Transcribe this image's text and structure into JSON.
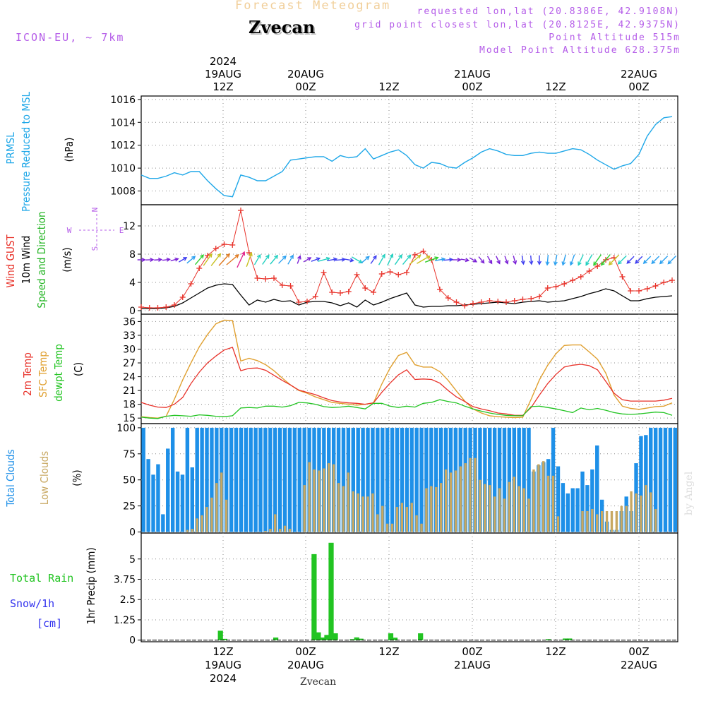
{
  "header": {
    "title": "Forecast Meteogram",
    "station": "Zvecan",
    "model": "ICON-EU, ~ 7km",
    "requested": "requested lon,lat (20.8386E, 42.9108N)",
    "grid_point": "grid point closest lon,lat (20.8125E, 42.9375N)",
    "point_altitude": "Point Altitude 515m",
    "model_altitude": "Model Point Altitude 628.375m"
  },
  "footer": {
    "station": "Zvecan",
    "credit": "by Angel"
  },
  "colors": {
    "pressure": "#1ea7e8",
    "wind": "#000000",
    "gust": "#e8322a",
    "temp": "#e8322a",
    "sfc_temp": "#e0a030",
    "dewpt": "#22c422",
    "total_clouds": "#1e90e8",
    "low_clouds": "#c8a862",
    "rain": "#22c422",
    "snow_label": "#3333ee",
    "compass": "#b45ce8"
  },
  "chart_data": [
    {
      "panel": "pressure",
      "type": "line",
      "ylabel_left": [
        "PRMSL",
        "Pressure Reduced to MSL"
      ],
      "ylabel_unit": "(hPa)",
      "ylim": [
        1006.8,
        1016.3
      ],
      "yticks": [
        1008,
        1010,
        1012,
        1014,
        1016
      ],
      "x": [
        0,
        1,
        2,
        3,
        4,
        5,
        6,
        7,
        8,
        9,
        10,
        11,
        12,
        13,
        14,
        15,
        16,
        17,
        18,
        19,
        20,
        21,
        22,
        23,
        24,
        25,
        26,
        27,
        28,
        29,
        30,
        31,
        32,
        33,
        34,
        35,
        36,
        37,
        38,
        39,
        40,
        41,
        42,
        43,
        44,
        45,
        46,
        47,
        48,
        49,
        50,
        51,
        52,
        53,
        54,
        55,
        56,
        57,
        58,
        59,
        60,
        61,
        62,
        63,
        64
      ],
      "values": [
        1009.4,
        1009.1,
        1009.1,
        1009.3,
        1009.6,
        1009.4,
        1009.7,
        1009.7,
        1008.9,
        1008.2,
        1007.6,
        1007.5,
        1009.4,
        1009.2,
        1008.9,
        1008.9,
        1009.3,
        1009.7,
        1010.7,
        1010.8,
        1010.9,
        1011.0,
        1011.0,
        1010.6,
        1011.1,
        1010.9,
        1011.0,
        1011.7,
        1010.8,
        1011.1,
        1011.4,
        1011.6,
        1011.1,
        1010.3,
        1010.0,
        1010.5,
        1010.4,
        1010.1,
        1010.0,
        1010.5,
        1010.9,
        1011.4,
        1011.7,
        1011.5,
        1011.2,
        1011.1,
        1011.1,
        1011.3,
        1011.4,
        1011.3,
        1011.3,
        1011.5,
        1011.7,
        1011.6,
        1011.2,
        1010.7,
        1010.3,
        1009.9,
        1010.2,
        1010.4,
        1011.2,
        1012.8,
        1013.8,
        1014.4,
        1014.5
      ]
    },
    {
      "panel": "wind",
      "type": "line",
      "ylabel_left": [
        "Wind GUST",
        "10m Wind",
        "Speed and Direction"
      ],
      "ylabel_unit": "(m/s)",
      "compass": {
        "n": "N",
        "s": "S",
        "e": "E",
        "w": "W"
      },
      "ylim": [
        -0.5,
        15
      ],
      "yticks": [
        0,
        4,
        8,
        12
      ],
      "wind_speed": [
        0.3,
        0.3,
        0.3,
        0.4,
        0.6,
        1.1,
        1.8,
        2.5,
        3.2,
        3.6,
        3.8,
        3.7,
        2.2,
        0.8,
        1.5,
        1.2,
        1.6,
        1.3,
        1.4,
        0.8,
        1.2,
        1.3,
        1.3,
        1.1,
        0.7,
        1.1,
        0.5,
        1.5,
        0.8,
        1.2,
        1.7,
        2.1,
        2.5,
        0.8,
        0.5,
        0.6,
        0.6,
        0.7,
        0.7,
        0.8,
        0.9,
        1.0,
        1.1,
        1.2,
        1.1,
        1.0,
        1.2,
        1.3,
        1.4,
        1.2,
        1.3,
        1.4,
        1.7,
        2.0,
        2.4,
        2.7,
        3.1,
        2.8,
        2.1,
        1.4,
        1.4,
        1.7,
        1.9,
        2.0,
        2.1
      ],
      "gust": [
        0.5,
        0.4,
        0.4,
        0.5,
        0.8,
        1.9,
        3.8,
        6.0,
        7.8,
        8.8,
        9.4,
        9.3,
        14.2,
        8.2,
        4.6,
        4.5,
        4.6,
        3.6,
        3.5,
        1.2,
        1.3,
        2.0,
        5.4,
        2.6,
        2.5,
        2.7,
        5.1,
        3.2,
        2.6,
        5.2,
        5.5,
        5.1,
        5.4,
        7.9,
        8.4,
        7.2,
        3.0,
        1.8,
        1.2,
        0.7,
        1.0,
        1.2,
        1.4,
        1.3,
        1.2,
        1.4,
        1.6,
        1.7,
        2.0,
        3.2,
        3.4,
        3.8,
        4.3,
        4.8,
        5.6,
        6.3,
        7.2,
        7.5,
        4.8,
        2.8,
        2.8,
        3.1,
        3.5,
        4.0,
        4.3
      ],
      "direction_deg": [
        270,
        268,
        266,
        262,
        255,
        240,
        230,
        220,
        215,
        218,
        222,
        230,
        205,
        200,
        210,
        215,
        220,
        225,
        210,
        200,
        240,
        250,
        255,
        260,
        265,
        280,
        300,
        230,
        215,
        210,
        205,
        215,
        220,
        230,
        240,
        250,
        260,
        265,
        270,
        280,
        300,
        320,
        330,
        335,
        340,
        345,
        350,
        355,
        360,
        5,
        10,
        15,
        20,
        25,
        30,
        35,
        40,
        45,
        45,
        45,
        45,
        45,
        45,
        45,
        45
      ]
    },
    {
      "panel": "temperature",
      "type": "line",
      "ylabel_left": [
        "2m Temp",
        "SFC Temp",
        "dewpt Temp"
      ],
      "ylabel_unit": "(C)",
      "ylim": [
        13.8,
        37.6
      ],
      "yticks": [
        15,
        18,
        21,
        24,
        27,
        30,
        33,
        36
      ],
      "temp_2m": [
        18.4,
        17.8,
        17.4,
        17.3,
        18.0,
        19.5,
        22.5,
        25.0,
        27.0,
        28.5,
        29.8,
        30.4,
        25.3,
        25.8,
        25.9,
        25.4,
        24.3,
        23.2,
        22.2,
        21.1,
        20.6,
        20.1,
        19.4,
        18.8,
        18.5,
        18.3,
        18.2,
        18.0,
        18.3,
        20.6,
        22.6,
        24.4,
        25.5,
        23.4,
        23.5,
        23.4,
        22.6,
        21.0,
        19.6,
        18.6,
        17.5,
        17.0,
        16.6,
        16.1,
        15.9,
        15.6,
        15.6,
        17.3,
        20.0,
        22.5,
        24.5,
        26.1,
        26.5,
        26.7,
        26.4,
        25.5,
        23.0,
        20.4,
        19.0,
        18.7,
        18.7,
        18.7,
        18.7,
        18.9,
        19.3
      ],
      "sfc_temp": [
        15.3,
        15.1,
        15.0,
        15.4,
        19.1,
        23.3,
        27.0,
        30.5,
        33.2,
        35.5,
        36.3,
        36.2,
        27.4,
        28.0,
        27.5,
        26.6,
        25.3,
        23.7,
        22.2,
        21.0,
        20.4,
        19.6,
        19.0,
        18.4,
        18.2,
        18.0,
        17.8,
        18.0,
        18.3,
        22.4,
        25.9,
        28.6,
        29.3,
        26.6,
        26.1,
        26.1,
        25.1,
        23.2,
        20.9,
        18.7,
        17.0,
        16.1,
        15.5,
        15.3,
        15.2,
        15.1,
        15.2,
        19.1,
        23.3,
        26.5,
        29.0,
        30.8,
        30.9,
        30.9,
        29.4,
        27.8,
        24.8,
        20.0,
        17.6,
        17.1,
        16.9,
        17.2,
        17.5,
        17.6,
        18.3
      ],
      "dewpt": [
        15.2,
        15.0,
        14.9,
        15.4,
        15.6,
        15.5,
        15.4,
        15.7,
        15.6,
        15.4,
        15.3,
        15.5,
        17.2,
        17.3,
        17.2,
        17.6,
        17.6,
        17.4,
        17.7,
        18.4,
        18.3,
        18.0,
        17.5,
        17.3,
        17.4,
        17.6,
        17.3,
        17.0,
        18.2,
        18.2,
        17.6,
        17.3,
        17.6,
        17.4,
        18.2,
        18.4,
        19.0,
        18.6,
        18.3,
        17.6,
        17.0,
        16.5,
        16.1,
        15.8,
        15.6,
        15.5,
        15.5,
        17.5,
        17.6,
        17.3,
        17.0,
        16.6,
        16.2,
        17.2,
        16.8,
        17.1,
        16.7,
        16.2,
        15.9,
        15.8,
        15.9,
        16.1,
        16.3,
        16.2,
        15.6
      ]
    },
    {
      "panel": "clouds",
      "type": "bar",
      "ylabel_left": [
        "Total Clouds",
        "Low Clouds"
      ],
      "ylabel_unit": "(%)",
      "ylim": [
        -1,
        104
      ],
      "yticks": [
        0,
        25,
        50,
        75,
        100
      ],
      "total_clouds": [
        100,
        70,
        55,
        65,
        17,
        80,
        100,
        58,
        55,
        100,
        62,
        100,
        100,
        100,
        100,
        100,
        100,
        100,
        100,
        100,
        100,
        100,
        100,
        100,
        100,
        100,
        100,
        100,
        100,
        100,
        100,
        100,
        100,
        100,
        100,
        100,
        100,
        100,
        100,
        100,
        100,
        100,
        100,
        100,
        100,
        100,
        100,
        100,
        100,
        100,
        100,
        100,
        100,
        100,
        100,
        100,
        100,
        100,
        100,
        100,
        100,
        100,
        100,
        100,
        100,
        100,
        100,
        100,
        100,
        100,
        100,
        100,
        100,
        100,
        100,
        100,
        100,
        100,
        100,
        100,
        58,
        64,
        67,
        70,
        100,
        63,
        47,
        37,
        42,
        42,
        58,
        45,
        60,
        83,
        31,
        10,
        2,
        2,
        20,
        34,
        20,
        66,
        92,
        93,
        100,
        100,
        100,
        100,
        100,
        100
      ],
      "low_clouds": [
        0,
        0,
        0,
        0,
        0,
        0,
        0,
        0,
        0,
        2,
        3,
        13,
        16,
        24,
        33,
        47,
        57,
        31,
        0,
        0,
        0,
        0,
        0,
        0,
        0,
        1,
        3,
        17,
        3,
        6,
        3,
        0,
        0,
        45,
        67,
        60,
        59,
        61,
        66,
        65,
        47,
        44,
        57,
        39,
        37,
        34,
        34,
        37,
        17,
        25,
        8,
        8,
        24,
        28,
        24,
        28,
        16,
        8,
        42,
        44,
        43,
        47,
        60,
        57,
        59,
        63,
        66,
        71,
        71,
        50,
        46,
        45,
        34,
        42,
        32,
        48,
        53,
        44,
        42,
        32,
        60,
        65,
        68,
        54,
        54,
        15,
        0,
        0,
        0,
        0,
        20,
        20,
        22,
        17,
        20,
        20,
        20,
        20,
        25,
        25,
        39,
        37,
        35,
        45,
        38,
        22,
        0,
        0,
        0,
        0
      ]
    },
    {
      "panel": "precip",
      "type": "bar",
      "ylabel_left": [
        "Total Rain",
        "Snow/1h",
        "[cm]"
      ],
      "ylabel_unit": "1hr Precip (mm)",
      "ylim": [
        -0.1,
        6.6
      ],
      "yticks": [
        0,
        1.25,
        2.5,
        3.75,
        5
      ],
      "ytick_labels": [
        "0",
        "1.25",
        "2.5",
        "3.75",
        "5"
      ],
      "rain": [
        0,
        0,
        0,
        0,
        0,
        0,
        0,
        0,
        0,
        0,
        0,
        0,
        0,
        0,
        0,
        0,
        0,
        0,
        0.58,
        0.08,
        0,
        0,
        0,
        0,
        0,
        0,
        0,
        0,
        0,
        0,
        0,
        0.16,
        0,
        0,
        0,
        0,
        0,
        0,
        0,
        0,
        5.3,
        0.48,
        0.16,
        0.32,
        6.0,
        0.42,
        0,
        0,
        0,
        0.06,
        0.17,
        0.09,
        0,
        0,
        0,
        0,
        0,
        0,
        0.42,
        0.15,
        0,
        0,
        0,
        0,
        0,
        0.42,
        0,
        0,
        0,
        0,
        0,
        0,
        0,
        0,
        0,
        0,
        0,
        0,
        0,
        0,
        0,
        0,
        0,
        0,
        0,
        0,
        0,
        0,
        0,
        0,
        0,
        0,
        0,
        0,
        0,
        0.06,
        0,
        0,
        0,
        0.1,
        0.1,
        0,
        0,
        0,
        0,
        0,
        0,
        0,
        0,
        0,
        0,
        0,
        0,
        0,
        0,
        0,
        0,
        0,
        0,
        0,
        0,
        0,
        0,
        0,
        0,
        0
      ]
    }
  ],
  "time_axis": {
    "top": [
      {
        "line1": "2024",
        "line2": "19AUG",
        "line3": "12Z"
      },
      {
        "line1": "",
        "line2": "20AUG",
        "line3": "00Z"
      },
      {
        "line1": "",
        "line2": "",
        "line3": "12Z"
      },
      {
        "line1": "",
        "line2": "21AUG",
        "line3": "00Z"
      },
      {
        "line1": "",
        "line2": "",
        "line3": "12Z"
      },
      {
        "line1": "",
        "line2": "22AUG",
        "line3": "00Z"
      }
    ],
    "bottom": [
      {
        "line1": "12Z",
        "line2": "19AUG",
        "line3": "2024"
      },
      {
        "line1": "00Z",
        "line2": "20AUG",
        "line3": ""
      },
      {
        "line1": "12Z",
        "line2": "",
        "line3": ""
      },
      {
        "line1": "00Z",
        "line2": "21AUG",
        "line3": ""
      },
      {
        "line1": "12Z",
        "line2": "",
        "line3": ""
      },
      {
        "line1": "00Z",
        "line2": "22AUG",
        "line3": ""
      }
    ]
  }
}
